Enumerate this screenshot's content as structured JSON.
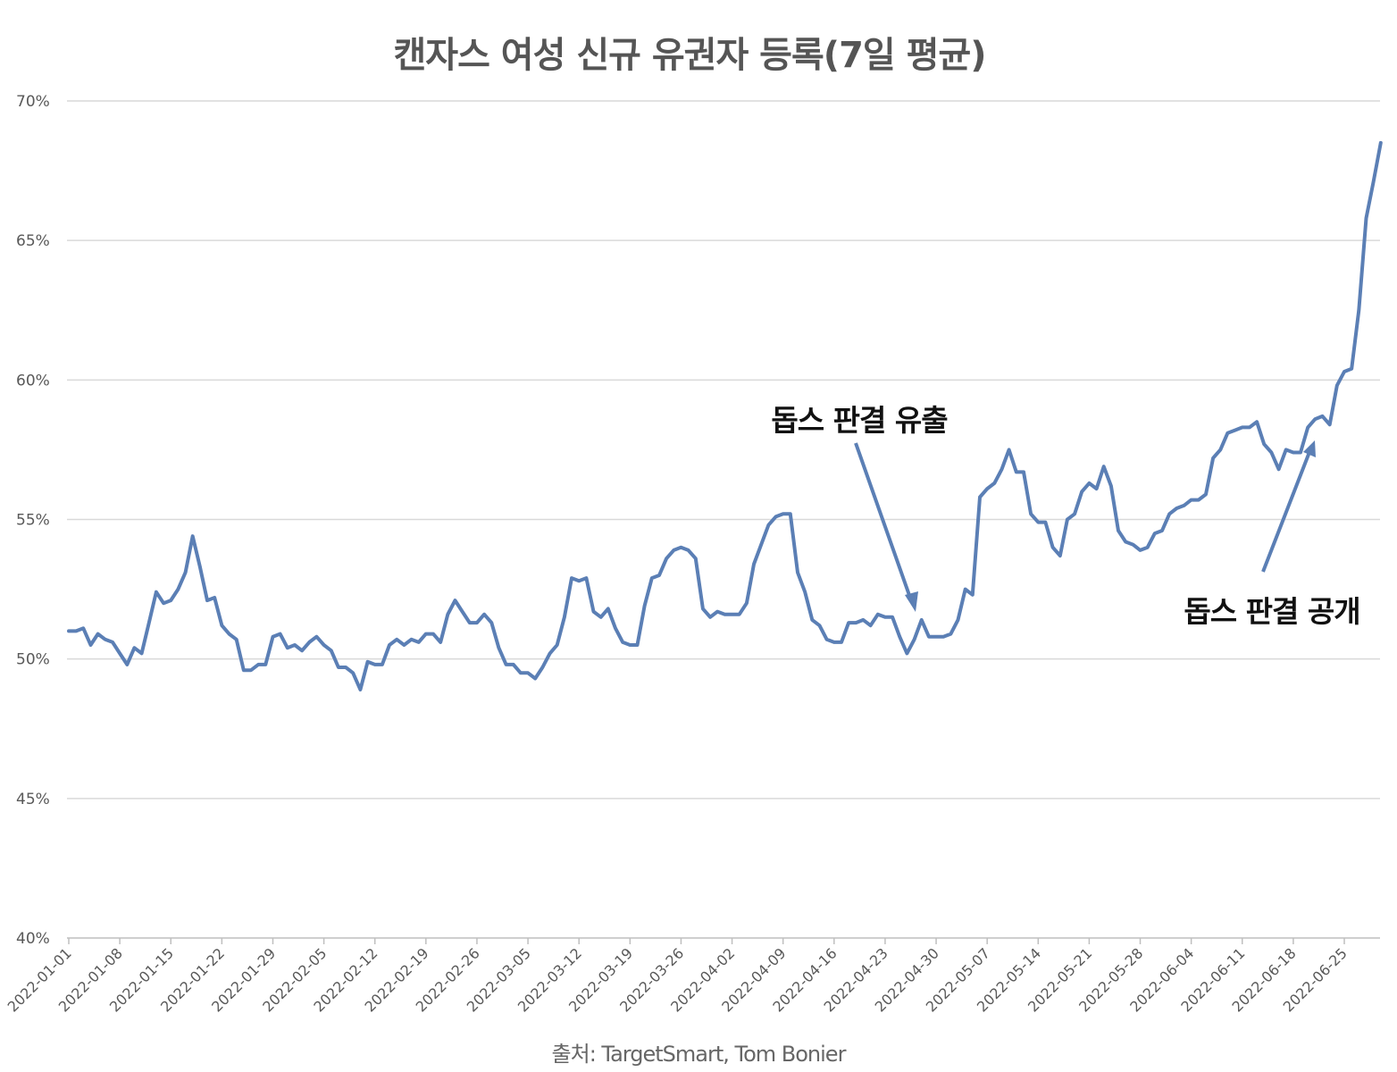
{
  "chart_data": {
    "type": "line",
    "title": "캔자스 여성 신규 유권자 등록(7일 평균)",
    "source": "출처: TargetSmart, Tom Bonier",
    "colors": {
      "series": "#5b7fb5",
      "grid": "#d9d9d9",
      "axis": "#bfbfbf",
      "arrow": "#5b7fb5"
    },
    "ylim": [
      40,
      70
    ],
    "yticks": [
      40,
      45,
      50,
      55,
      60,
      65,
      70
    ],
    "ytick_labels": [
      "40%",
      "45%",
      "50%",
      "55%",
      "60%",
      "65%",
      "70%"
    ],
    "x_start": "2022-01-01",
    "xtick_labels": [
      "2022-01-01",
      "2022-01-08",
      "2022-01-15",
      "2022-01-22",
      "2022-01-29",
      "2022-02-05",
      "2022-02-12",
      "2022-02-19",
      "2022-02-26",
      "2022-03-05",
      "2022-03-12",
      "2022-03-19",
      "2022-03-26",
      "2022-04-02",
      "2022-04-09",
      "2022-04-16",
      "2022-04-23",
      "2022-04-30",
      "2022-05-07",
      "2022-05-14",
      "2022-05-21",
      "2022-05-28",
      "2022-06-04",
      "2022-06-11",
      "2022-06-18",
      "2022-06-25"
    ],
    "grid": true,
    "series": [
      {
        "values": [
          51.0,
          51.0,
          51.1,
          50.5,
          50.9,
          50.7,
          50.6,
          50.2,
          49.8,
          50.4,
          50.2,
          51.3,
          52.4,
          52.0,
          52.1,
          52.5,
          53.1,
          54.4,
          53.3,
          52.1,
          52.2,
          51.2,
          50.9,
          50.7,
          49.6,
          49.6,
          49.8,
          49.8,
          50.8,
          50.9,
          50.4,
          50.5,
          50.3,
          50.6,
          50.8,
          50.5,
          50.3,
          49.7,
          49.7,
          49.5,
          48.9,
          49.9,
          49.8,
          49.8,
          50.5,
          50.7,
          50.5,
          50.7,
          50.6,
          50.9,
          50.9,
          50.6,
          51.6,
          52.1,
          51.7,
          51.3,
          51.3,
          51.6,
          51.3,
          50.4,
          49.8,
          49.8,
          49.5,
          49.5,
          49.3,
          49.7,
          50.2,
          50.5,
          51.5,
          52.9,
          52.8,
          52.9,
          51.7,
          51.5,
          51.8,
          51.1,
          50.6,
          50.5,
          50.5,
          51.9,
          52.9,
          53.0,
          53.6,
          53.9,
          54.0,
          53.9,
          53.6,
          51.8,
          51.5,
          51.7,
          51.6,
          51.6,
          51.6,
          52.0,
          53.4,
          54.1,
          54.8,
          55.1,
          55.2,
          55.2,
          53.1,
          52.4,
          51.4,
          51.2,
          50.7,
          50.6,
          50.6,
          51.3,
          51.3,
          51.4,
          51.2,
          51.6,
          51.5,
          51.5,
          50.8,
          50.2,
          50.7,
          51.4,
          50.8,
          50.8,
          50.8,
          50.9,
          51.4,
          52.5,
          52.3,
          55.8,
          56.1,
          56.3,
          56.8,
          57.5,
          56.7,
          56.7,
          55.2,
          54.9,
          54.9,
          54.0,
          53.7,
          55.0,
          55.2,
          56.0,
          56.3,
          56.1,
          56.9,
          56.2,
          54.6,
          54.2,
          54.1,
          53.9,
          54.0,
          54.5,
          54.6,
          55.2,
          55.4,
          55.5,
          55.7,
          55.7,
          55.9,
          57.2,
          57.5,
          58.1,
          58.2,
          58.3,
          58.3,
          58.5,
          57.7,
          57.4,
          56.8,
          57.5,
          57.4,
          57.4,
          58.3,
          58.6,
          58.7,
          58.4,
          59.8,
          60.3,
          60.4,
          62.5,
          65.8,
          67.1,
          68.5
        ]
      }
    ],
    "annotations": [
      {
        "text": "돕스 판결 유출"
      },
      {
        "text": "돕스 판결 공개"
      }
    ]
  }
}
